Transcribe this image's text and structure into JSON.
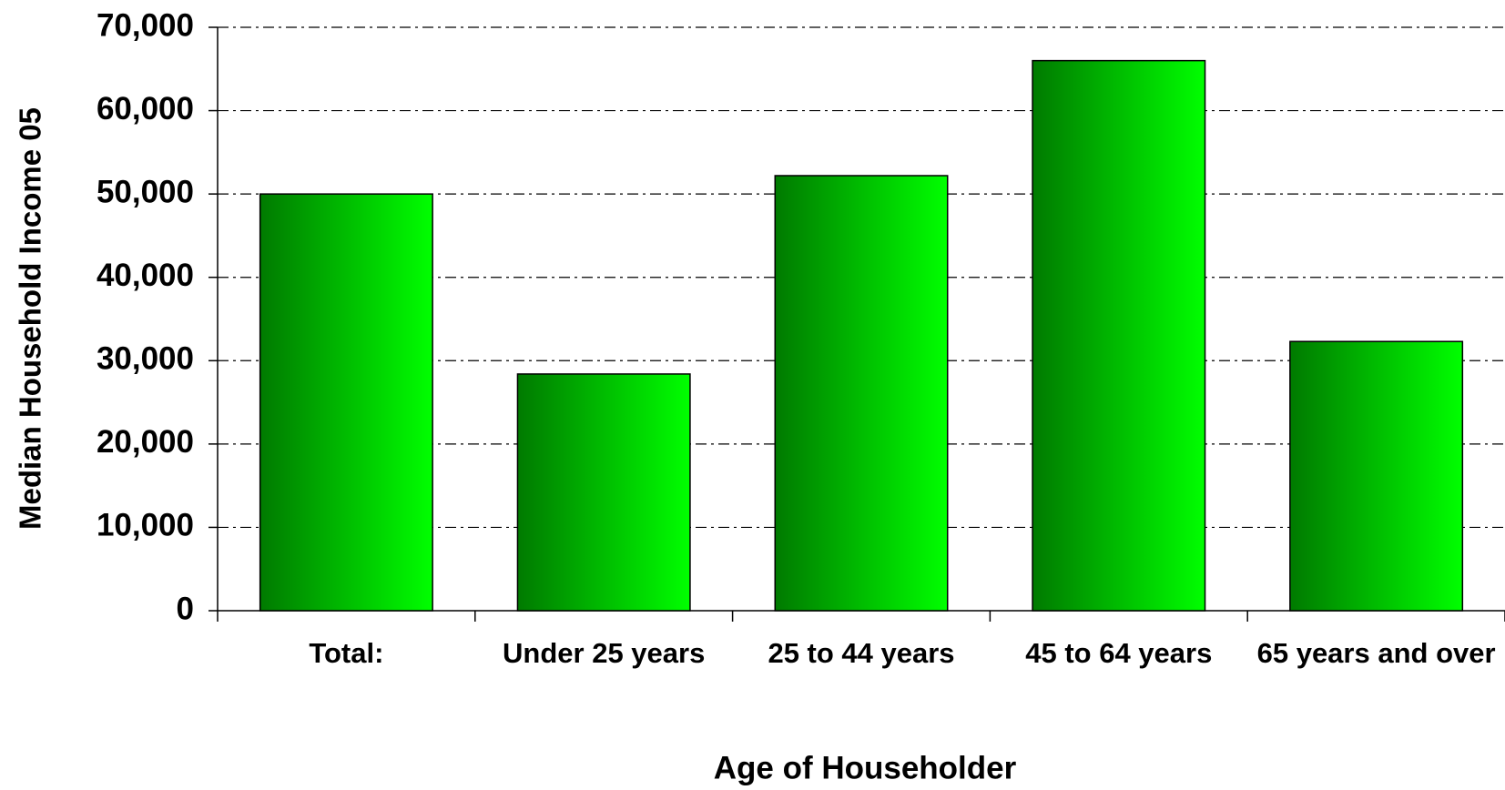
{
  "chart_data": {
    "type": "bar",
    "x_label": "Age of Householder",
    "y_label": "Median Household Income 05",
    "categories": [
      "Total:",
      "Under 25 years",
      "25 to 44 years",
      "45 to 64 years",
      "65 years and over"
    ],
    "values": [
      50000,
      28400,
      52200,
      66000,
      32300
    ],
    "gradient": [
      "#007a00",
      "#00ff00"
    ],
    "ylim": [
      0,
      70000
    ],
    "yticks": [
      0,
      {
        "value": 10000,
        "label": "10,000"
      },
      {
        "value": 20000,
        "label": "20,000"
      },
      {
        "value": 30000,
        "label": "30,000"
      },
      {
        "value": 40000,
        "label": "40,000"
      },
      {
        "value": 50000,
        "label": "50,000"
      },
      {
        "value": 60000,
        "label": "60,000"
      },
      {
        "value": 70000,
        "label": "70,000"
      }
    ],
    "grid": true
  }
}
